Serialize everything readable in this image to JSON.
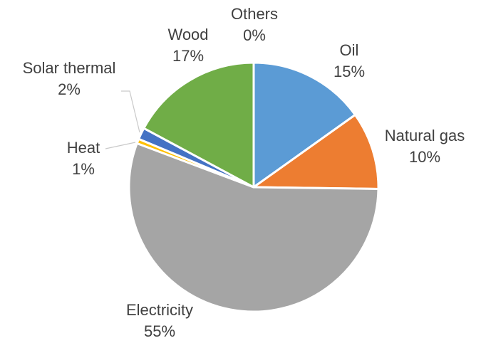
{
  "chart_data": {
    "type": "pie",
    "title": "",
    "legend": "none",
    "slices": [
      {
        "label": "Oil",
        "value": 15,
        "value_label": "15%",
        "color": "#5b9bd5"
      },
      {
        "label": "Natural gas",
        "value": 10,
        "value_label": "10%",
        "color": "#ed7d31"
      },
      {
        "label": "Electricity",
        "value": 55,
        "value_label": "55%",
        "color": "#a5a5a5"
      },
      {
        "label": "Heat",
        "value": 0.6,
        "value_label": "1%",
        "color": "#ffc000"
      },
      {
        "label": "Solar thermal",
        "value": 1.5,
        "value_label": "2%",
        "color": "#4472c4"
      },
      {
        "label": "Wood",
        "value": 17,
        "value_label": "17%",
        "color": "#70ad47"
      },
      {
        "label": "Others",
        "value": 0,
        "value_label": "0%",
        "color": "#264478"
      }
    ]
  }
}
